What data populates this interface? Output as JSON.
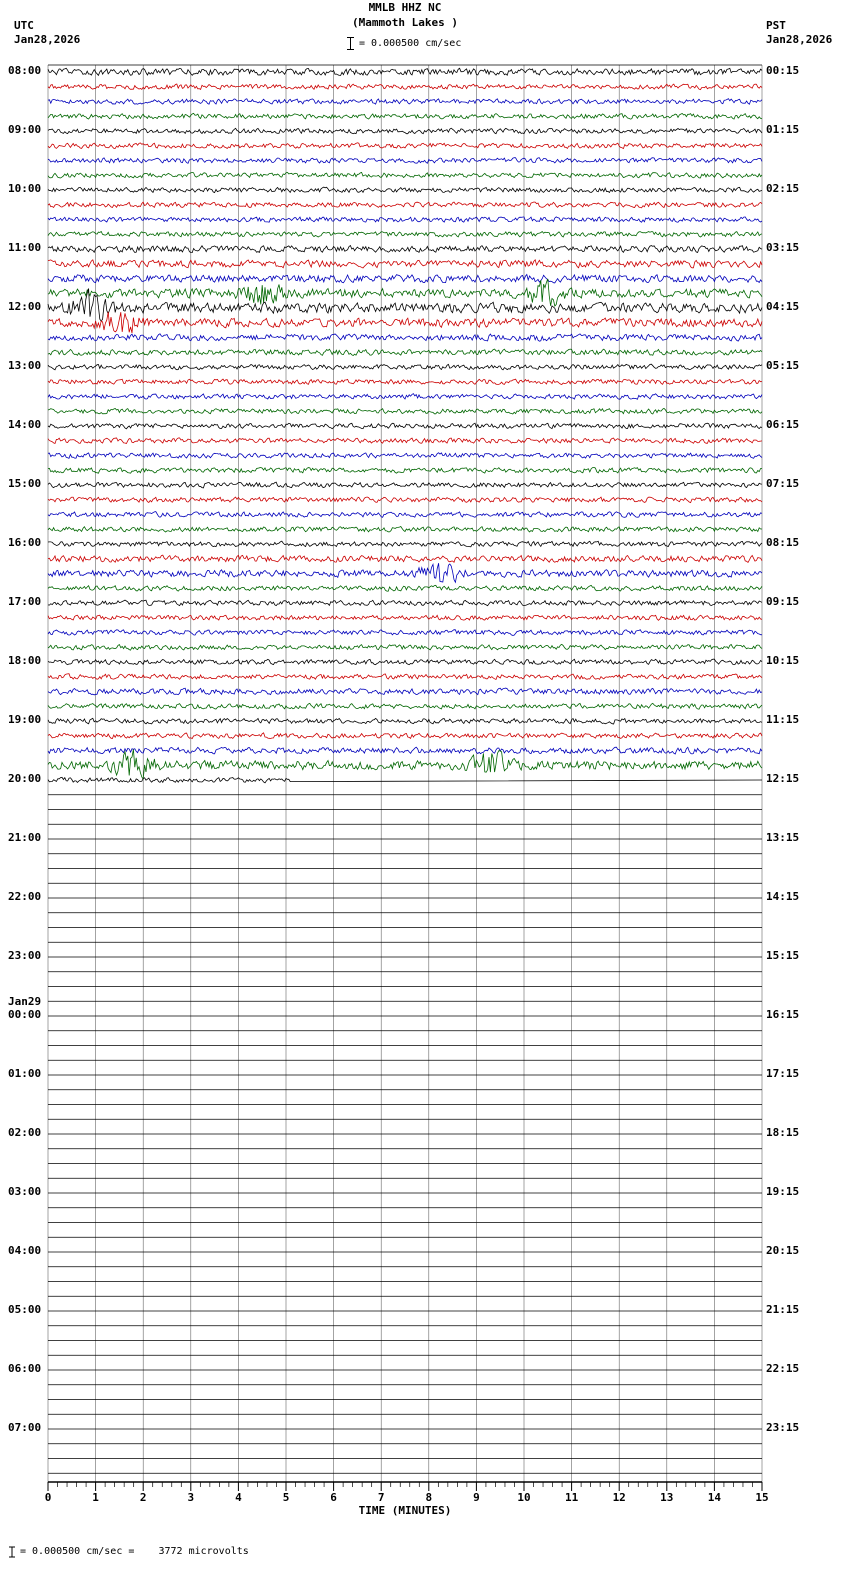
{
  "header": {
    "station": "MMLB HHZ NC",
    "location": "(Mammoth Lakes )",
    "scale_text": "= 0.000500 cm/sec",
    "utc": "UTC",
    "utc_date": "Jan28,2026",
    "pst": "PST",
    "pst_date": "Jan28,2026"
  },
  "footer": {
    "axis_title": "TIME (MINUTES)",
    "note": "= 0.000500 cm/sec =    3772 microvolts"
  },
  "chart_data": {
    "type": "line",
    "subtype": "seismogram-helicorder",
    "title": "MMLB HHZ NC",
    "subtitle": "(Mammoth Lakes )",
    "xlabel": "TIME (MINUTES)",
    "x_range": [
      0,
      15
    ],
    "x_ticks": [
      "0",
      "1",
      "2",
      "3",
      "4",
      "5",
      "6",
      "7",
      "8",
      "9",
      "10",
      "11",
      "12",
      "13",
      "14",
      "15"
    ],
    "rows": 96,
    "traces_per_hour": 4,
    "row_duration_minutes": 15,
    "utc_labels": [
      "08:00",
      "09:00",
      "10:00",
      "11:00",
      "12:00",
      "13:00",
      "14:00",
      "15:00",
      "16:00",
      "17:00",
      "18:00",
      "19:00",
      "20:00",
      "21:00",
      "22:00",
      "23:00",
      "00:00",
      "01:00",
      "02:00",
      "03:00",
      "04:00",
      "05:00",
      "06:00",
      "07:00"
    ],
    "day_change": {
      "label": "Jan29",
      "utc_label_index": 16
    },
    "pst_labels": [
      "00:15",
      "01:15",
      "02:15",
      "03:15",
      "04:15",
      "05:15",
      "06:15",
      "07:15",
      "08:15",
      "09:15",
      "10:15",
      "11:15",
      "12:15",
      "13:15",
      "14:15",
      "15:15",
      "16:15",
      "17:15",
      "18:15",
      "19:15",
      "20:15",
      "21:15",
      "22:15",
      "23:15"
    ],
    "trace_colors": [
      "#000000",
      "#cc0000",
      "#0000bb",
      "#006600"
    ],
    "flat_color": "#000000",
    "grid_color": "#666666",
    "active_row_count": 48,
    "partial_row": {
      "index": 48,
      "fraction": 0.34
    },
    "scale_note": "1 bar = 0.000500 cm/sec = 3772 microvolts",
    "base_amplitude": 2.0,
    "amp_overrides": {
      "0": 1.3,
      "12": 1.3,
      "13": 1.45,
      "14": 1.55,
      "15": 1.8,
      "16": 2.0,
      "17": 1.7,
      "18": 1.3,
      "19": 1.15,
      "33": 1.3,
      "34": 1.4,
      "42": 1.15,
      "46": 1.2,
      "47": 1.8
    },
    "bursts": {
      "15": [
        0.3,
        0.7
      ],
      "16": [
        0.06
      ],
      "17": [
        0.1
      ],
      "34": [
        0.55
      ],
      "47": [
        0.12,
        0.62
      ]
    }
  }
}
